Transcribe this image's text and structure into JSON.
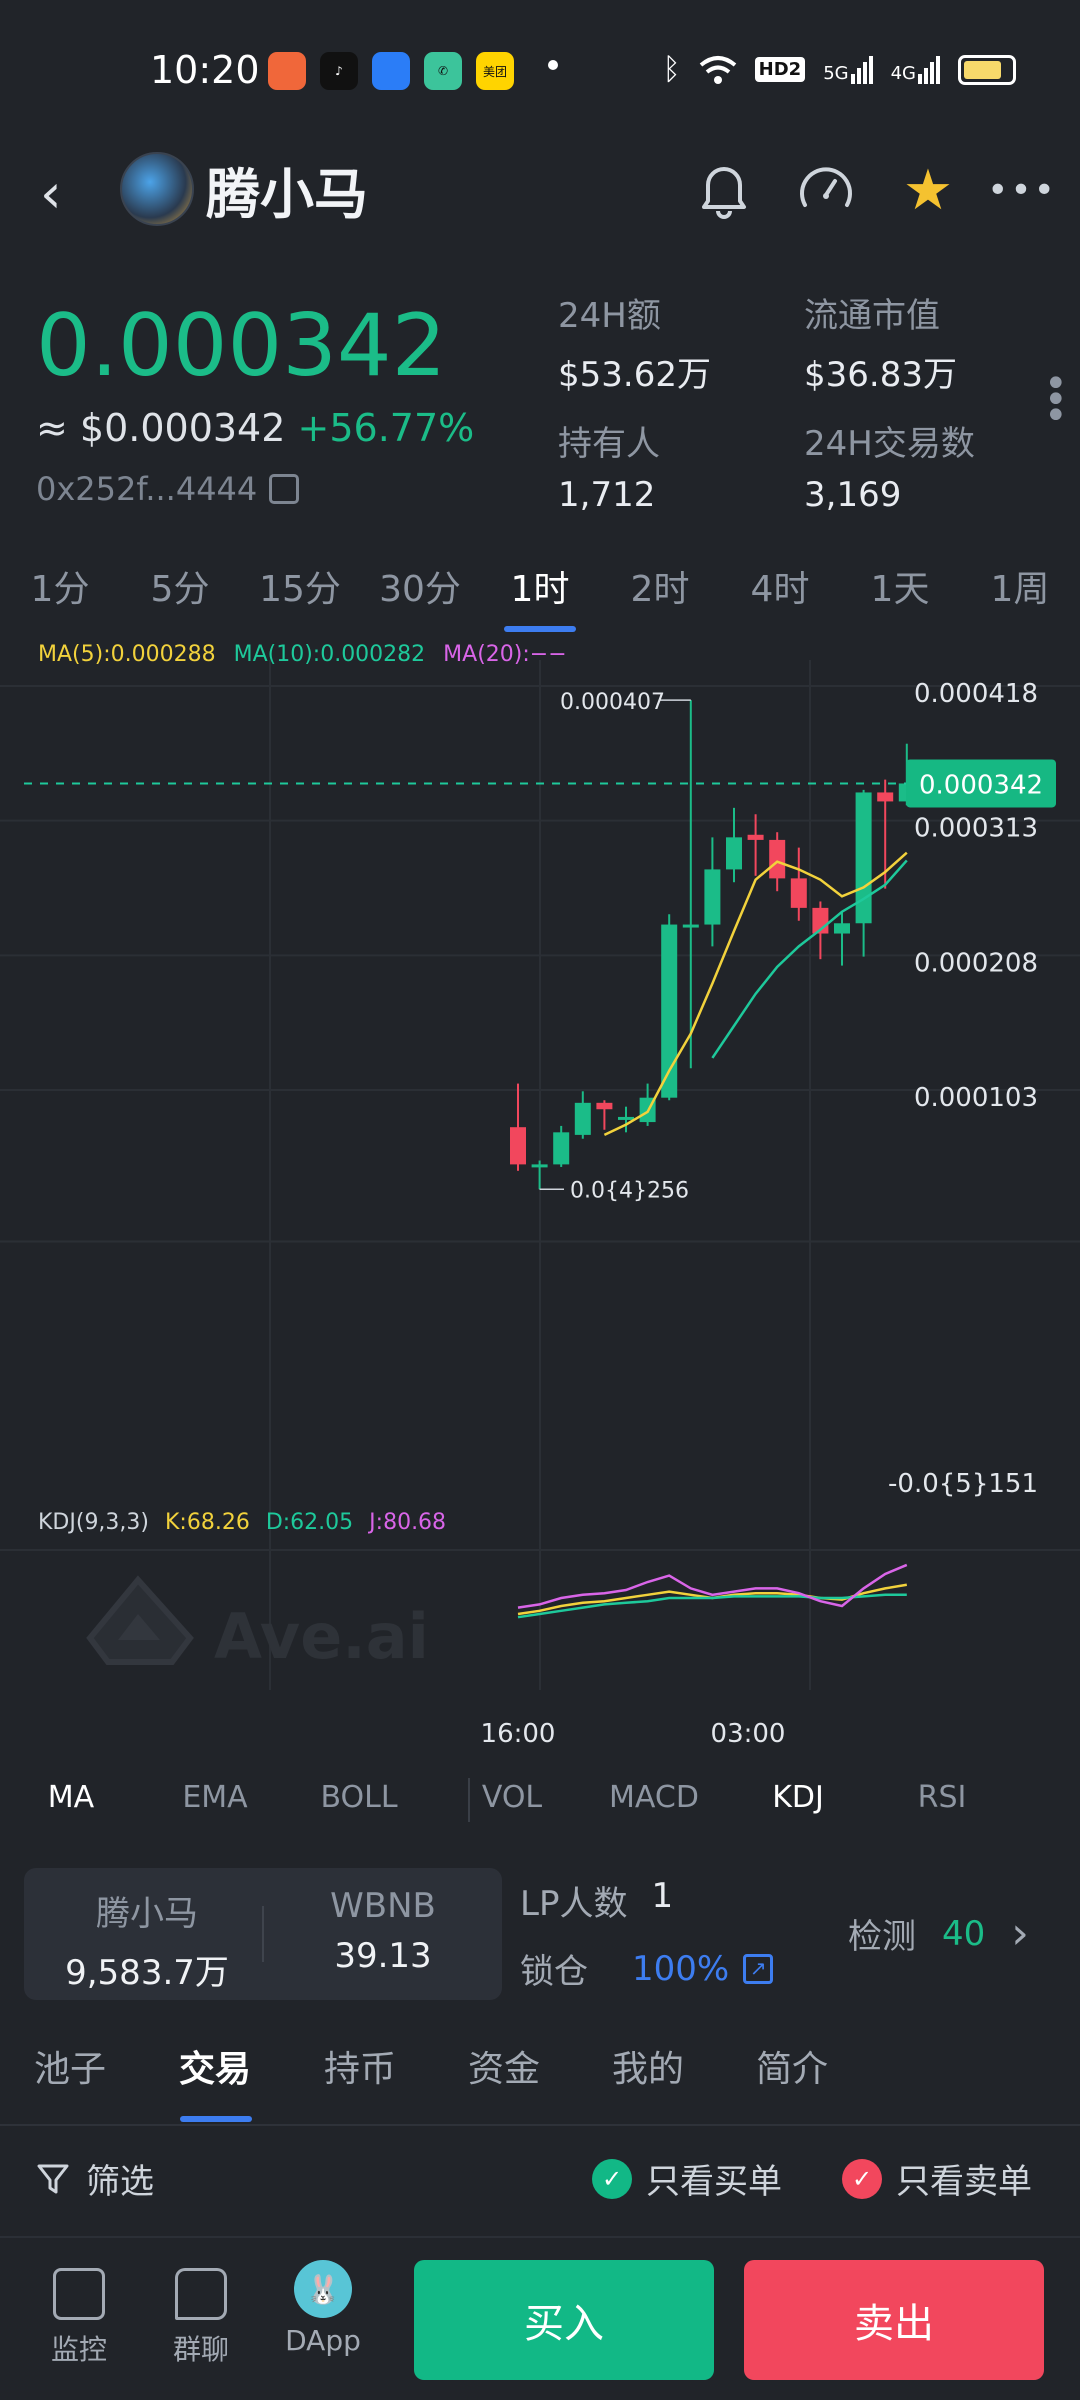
{
  "status_bar": {
    "time": "10:20",
    "apps": [
      {
        "name": "app-1-icon",
        "color": "#f0673a",
        "label": ""
      },
      {
        "name": "tiktok-icon",
        "color": "#111111",
        "label": "♪"
      },
      {
        "name": "browser-icon",
        "color": "#2b7df7",
        "label": ""
      },
      {
        "name": "phone-app-icon",
        "color": "#3cc49b",
        "label": "✆"
      },
      {
        "name": "meituan-icon",
        "color": "#ffd400",
        "label": "美团"
      }
    ],
    "network_5g": "5G",
    "network_4g": "4G",
    "hd_badge": "HD2",
    "battery_level": 0.8
  },
  "header": {
    "token_name": "腾小马"
  },
  "price": {
    "main": "0.000342",
    "usd": "≈ $0.000342",
    "change": "+56.77%",
    "address": "0x252f...4444"
  },
  "stats": [
    {
      "label": "24H额",
      "value": "$53.62万"
    },
    {
      "label": "流通市值",
      "value": "$36.83万"
    },
    {
      "label": "持有人",
      "value": "1,712"
    },
    {
      "label": "24H交易数",
      "value": "3,169"
    }
  ],
  "timeframes": [
    "1分",
    "5分",
    "15分",
    "30分",
    "1时",
    "2时",
    "4时",
    "1天",
    "1周"
  ],
  "active_timeframe": "1时",
  "chart_legend": {
    "ma5": "MA(5):0.000288",
    "ma10": "MA(10):0.000282",
    "ma20": "MA(20):−−",
    "kdj": "KDJ(9,3,3)",
    "k": "K:68.26",
    "d": "D:62.05",
    "j": "J:80.68"
  },
  "chart_data": {
    "type": "candlestick",
    "y_ticks": [
      "0.000418",
      "0.000313",
      "0.000208",
      "0.000103",
      "-0.0{5}151"
    ],
    "y_tick_values": [
      0.000418,
      0.000313,
      0.000208,
      0.000103,
      -1.51e-05
    ],
    "x_ticks": [
      "16:00",
      "03:00"
    ],
    "current_price_label": "0.000342",
    "current_price": 0.000342,
    "high_label": "0.000407",
    "high_value": 0.000407,
    "low_label": "0.0{4}256",
    "low_value": 2.56e-05,
    "candles": [
      {
        "o": 7.4e-05,
        "c": 4.5e-05,
        "h": 0.000108,
        "l": 4e-05
      },
      {
        "o": 4.5e-05,
        "c": 4.5e-05,
        "h": 4.8e-05,
        "l": 2.56e-05
      },
      {
        "o": 4.5e-05,
        "c": 7e-05,
        "h": 7.5e-05,
        "l": 4.3e-05
      },
      {
        "o": 6.8e-05,
        "c": 9.3e-05,
        "h": 0.000102,
        "l": 6.5e-05
      },
      {
        "o": 9.3e-05,
        "c": 8.8e-05,
        "h": 9.5e-05,
        "l": 7.2e-05
      },
      {
        "o": 8.2e-05,
        "c": 8.2e-05,
        "h": 9e-05,
        "l": 7e-05
      },
      {
        "o": 7.8e-05,
        "c": 9.7e-05,
        "h": 0.000108,
        "l": 7.5e-05
      },
      {
        "o": 9.7e-05,
        "c": 0.000232,
        "h": 0.00024,
        "l": 9.5e-05
      },
      {
        "o": 0.000232,
        "c": 0.000232,
        "h": 0.000407,
        "l": 0.00012
      },
      {
        "o": 0.000232,
        "c": 0.000275,
        "h": 0.0003,
        "l": 0.000215
      },
      {
        "o": 0.000275,
        "c": 0.0003,
        "h": 0.000323,
        "l": 0.000265
      },
      {
        "o": 0.000302,
        "c": 0.000298,
        "h": 0.000318,
        "l": 0.00027
      },
      {
        "o": 0.000298,
        "c": 0.000268,
        "h": 0.000304,
        "l": 0.000258
      },
      {
        "o": 0.000268,
        "c": 0.000245,
        "h": 0.000292,
        "l": 0.000235
      },
      {
        "o": 0.000245,
        "c": 0.000225,
        "h": 0.00025,
        "l": 0.000205
      },
      {
        "o": 0.000225,
        "c": 0.000233,
        "h": 0.000242,
        "l": 0.0002
      },
      {
        "o": 0.000233,
        "c": 0.000335,
        "h": 0.000337,
        "l": 0.000207
      },
      {
        "o": 0.000335,
        "c": 0.000328,
        "h": 0.000345,
        "l": 0.00026
      },
      {
        "o": 0.000328,
        "c": 0.000342,
        "h": 0.000373,
        "l": 0.000325
      }
    ],
    "ma5": [
      null,
      null,
      null,
      null,
      6.8e-05,
      7.6e-05,
      8.6e-05,
      0.000118,
      0.000147,
      0.000186,
      0.000227,
      0.000267,
      0.000281,
      0.000275,
      0.000267,
      0.000254,
      0.000261,
      0.000273,
      0.000288
    ],
    "ma10": [
      null,
      null,
      null,
      null,
      null,
      null,
      null,
      null,
      null,
      0.000128,
      0.000153,
      0.000178,
      0.000199,
      0.000215,
      0.000228,
      0.000242,
      0.000252,
      0.000263,
      0.000282
    ],
    "kdj_k": [
      50,
      52,
      55,
      57,
      58,
      60,
      62,
      64,
      62,
      60,
      62,
      63,
      63,
      62,
      60,
      59,
      63,
      66,
      68.26
    ],
    "kdj_d": [
      48,
      50,
      52,
      54,
      56,
      57,
      58,
      60,
      60,
      60,
      61,
      61,
      61,
      61,
      60,
      60,
      61,
      62,
      62.05
    ],
    "kdj_j": [
      54,
      56,
      60,
      62,
      63,
      65,
      70,
      74,
      66,
      62,
      64,
      66,
      66,
      63,
      58,
      55,
      66,
      75,
      80.68
    ],
    "watermark": "Ave.ai"
  },
  "indicators": {
    "main": [
      "MA",
      "EMA",
      "BOLL"
    ],
    "sub": [
      "VOL",
      "MACD",
      "KDJ",
      "RSI"
    ],
    "active_main": "MA",
    "active_sub": "KDJ"
  },
  "pool": {
    "token_label": "腾小马",
    "token_value": "9,583.7万",
    "pair_label": "WBNB",
    "pair_value": "39.13",
    "lp_label": "LP人数",
    "lp_value": "1",
    "lock_label": "锁仓",
    "lock_value": "100%",
    "detect_label": "检测",
    "detect_value": "40"
  },
  "sections": [
    "池子",
    "交易",
    "持币",
    "资金",
    "我的",
    "简介"
  ],
  "active_section": "交易",
  "filter": {
    "label": "筛选",
    "buy_only": "只看买单",
    "sell_only": "只看卖单"
  },
  "bottom_nav": [
    {
      "label": "监控"
    },
    {
      "label": "群聊"
    },
    {
      "label": "DApp"
    }
  ],
  "buy_label": "买入",
  "sell_label": "卖出",
  "colors": {
    "up": "#1bbc88",
    "down": "#f2475d",
    "ma5": "#f2d23c",
    "ma10": "#1ec99b",
    "ma20": "#d965e8",
    "accent": "#3d7df0"
  }
}
